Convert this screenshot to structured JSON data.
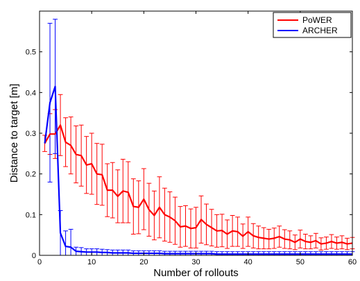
{
  "chart_data": {
    "type": "line",
    "xlabel": "Number of rollouts",
    "ylabel": "Distance to target [m]",
    "xlim": [
      0,
      60
    ],
    "ylim": [
      0,
      0.6
    ],
    "xticks": [
      0,
      10,
      20,
      30,
      40,
      50,
      60
    ],
    "xtick_labels": [
      "0",
      "10",
      "20",
      "30",
      "40",
      "50",
      "60"
    ],
    "yticks": [
      0,
      0.1,
      0.2,
      0.3,
      0.4,
      0.5
    ],
    "ytick_labels": [
      "0",
      "0.1",
      "0.2",
      "0.3",
      "0.4",
      "0.5"
    ],
    "grid": false,
    "legend_position": "top-right",
    "series": [
      {
        "name": "PoWER",
        "color": "#ff0000",
        "x": [
          1,
          2,
          3,
          4,
          5,
          6,
          7,
          8,
          9,
          10,
          11,
          12,
          13,
          14,
          15,
          16,
          17,
          18,
          19,
          20,
          21,
          22,
          23,
          24,
          25,
          26,
          27,
          28,
          29,
          30,
          31,
          32,
          33,
          34,
          35,
          36,
          37,
          38,
          39,
          40,
          41,
          42,
          43,
          44,
          45,
          46,
          47,
          48,
          49,
          50,
          51,
          52,
          53,
          54,
          55,
          56,
          57,
          58,
          59,
          60
        ],
        "y": [
          0.275,
          0.298,
          0.298,
          0.32,
          0.278,
          0.27,
          0.248,
          0.245,
          0.222,
          0.225,
          0.2,
          0.198,
          0.16,
          0.16,
          0.145,
          0.158,
          0.155,
          0.12,
          0.118,
          0.138,
          0.112,
          0.098,
          0.118,
          0.1,
          0.094,
          0.085,
          0.07,
          0.072,
          0.066,
          0.068,
          0.088,
          0.076,
          0.068,
          0.06,
          0.061,
          0.052,
          0.06,
          0.058,
          0.047,
          0.058,
          0.048,
          0.044,
          0.042,
          0.04,
          0.042,
          0.046,
          0.04,
          0.038,
          0.032,
          0.04,
          0.034,
          0.032,
          0.036,
          0.028,
          0.03,
          0.034,
          0.03,
          0.032,
          0.028,
          0.03
        ],
        "error": [
          0.02,
          0.05,
          0.06,
          0.075,
          0.06,
          0.07,
          0.07,
          0.075,
          0.07,
          0.075,
          0.075,
          0.075,
          0.065,
          0.068,
          0.065,
          0.078,
          0.075,
          0.068,
          0.065,
          0.075,
          0.065,
          0.06,
          0.075,
          0.065,
          0.062,
          0.058,
          0.05,
          0.05,
          0.048,
          0.05,
          0.058,
          0.05,
          0.045,
          0.04,
          0.04,
          0.035,
          0.038,
          0.036,
          0.03,
          0.036,
          0.03,
          0.028,
          0.026,
          0.024,
          0.025,
          0.026,
          0.023,
          0.022,
          0.018,
          0.022,
          0.018,
          0.016,
          0.018,
          0.015,
          0.015,
          0.017,
          0.015,
          0.016,
          0.014,
          0.014
        ]
      },
      {
        "name": "ARCHER",
        "color": "#0000ff",
        "x": [
          1,
          2,
          3,
          4,
          5,
          6,
          7,
          8,
          9,
          10,
          11,
          12,
          13,
          14,
          15,
          16,
          17,
          18,
          19,
          20,
          21,
          22,
          23,
          24,
          25,
          26,
          27,
          28,
          29,
          30,
          31,
          32,
          33,
          34,
          35,
          36,
          37,
          38,
          39,
          40,
          41,
          42,
          43,
          44,
          45,
          46,
          47,
          48,
          49,
          50,
          51,
          52,
          53,
          54,
          55,
          56,
          57,
          58,
          59,
          60
        ],
        "y": [
          0.275,
          0.375,
          0.415,
          0.055,
          0.022,
          0.02,
          0.01,
          0.009,
          0.008,
          0.008,
          0.008,
          0.007,
          0.007,
          0.006,
          0.006,
          0.006,
          0.006,
          0.005,
          0.005,
          0.005,
          0.005,
          0.005,
          0.005,
          0.004,
          0.004,
          0.004,
          0.004,
          0.004,
          0.004,
          0.004,
          0.004,
          0.004,
          0.004,
          0.003,
          0.003,
          0.003,
          0.003,
          0.003,
          0.003,
          0.003,
          0.003,
          0.003,
          0.003,
          0.003,
          0.003,
          0.003,
          0.003,
          0.003,
          0.003,
          0.003,
          0.003,
          0.003,
          0.003,
          0.003,
          0.003,
          0.003,
          0.003,
          0.003,
          0.003,
          0.003
        ],
        "error": [
          0.0,
          0.195,
          0.165,
          0.055,
          0.038,
          0.044,
          0.01,
          0.01,
          0.008,
          0.008,
          0.008,
          0.008,
          0.007,
          0.007,
          0.007,
          0.007,
          0.007,
          0.006,
          0.006,
          0.006,
          0.006,
          0.006,
          0.006,
          0.006,
          0.006,
          0.006,
          0.006,
          0.006,
          0.006,
          0.006,
          0.006,
          0.006,
          0.006,
          0.006,
          0.006,
          0.006,
          0.006,
          0.006,
          0.006,
          0.006,
          0.006,
          0.006,
          0.006,
          0.006,
          0.006,
          0.006,
          0.006,
          0.006,
          0.006,
          0.006,
          0.006,
          0.006,
          0.006,
          0.006,
          0.006,
          0.006,
          0.006,
          0.006,
          0.006,
          0.006
        ]
      }
    ]
  }
}
